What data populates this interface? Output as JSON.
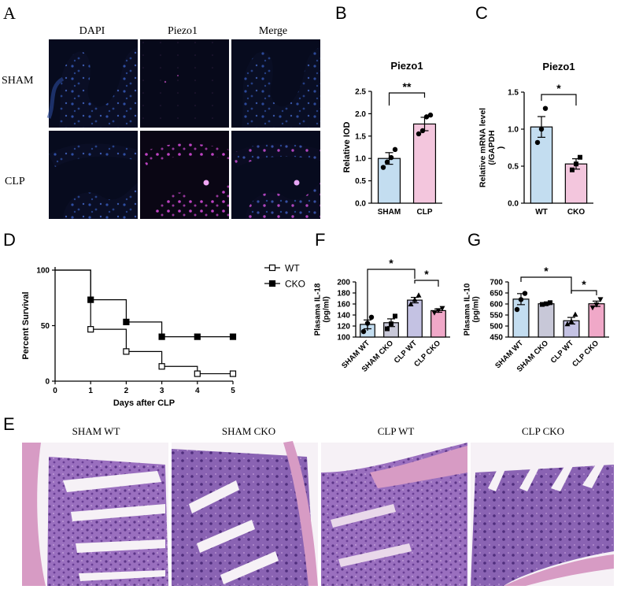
{
  "panels": {
    "A": {
      "letter": "A",
      "columns": [
        "DAPI",
        "Piezo1",
        "Merge"
      ],
      "rows": [
        "SHAM",
        "CLP"
      ]
    },
    "B": {
      "letter": "B"
    },
    "C": {
      "letter": "C"
    },
    "D": {
      "letter": "D"
    },
    "E": {
      "letter": "E",
      "captions": [
        "SHAM WT",
        "SHAM CKO",
        "CLP WT",
        "CLP CKO"
      ]
    },
    "F": {
      "letter": "F"
    },
    "G": {
      "letter": "G"
    }
  },
  "colors": {
    "sham_bar": "#c3ddf0",
    "clp_bar": "#f3c6dd",
    "clp_wt_bar": "#c4c2e3",
    "cko_bar": "#f0a8c8",
    "sham_cko_bar": "#c8c8d8",
    "dapi_blue": "#2b4a9a",
    "piezo_magenta": "#d24ad6",
    "he_purple": "#7d4fa8",
    "he_pink": "#d79bc4"
  },
  "chart_data": [
    {
      "id": "B",
      "type": "bar",
      "title": "Piezo1",
      "ylabel": "Relative IOD",
      "categories": [
        "SHAM",
        "CLP"
      ],
      "values": [
        1.0,
        1.77
      ],
      "errors": [
        0.13,
        0.15
      ],
      "points": [
        [
          0.8,
          0.92,
          1.02,
          1.2
        ],
        [
          1.55,
          1.62,
          1.93,
          1.97
        ]
      ],
      "ylim": [
        0,
        2.5
      ],
      "yticks": [
        "0.0",
        "0.5",
        "1.0",
        "1.5",
        "2.0",
        "2.5"
      ],
      "significance": "**"
    },
    {
      "id": "C",
      "type": "bar",
      "title": "Piezo1",
      "ylabel": "Relative mRNA level\n(/GAPDH\n)",
      "categories": [
        "WT",
        "CKO"
      ],
      "values": [
        1.03,
        0.53
      ],
      "errors": [
        0.14,
        0.07
      ],
      "points": [
        [
          0.82,
          1.0,
          1.28
        ],
        [
          0.45,
          0.53,
          0.62
        ]
      ],
      "ylim": [
        0,
        1.5
      ],
      "yticks": [
        "0.0",
        "0.5",
        "1.0",
        "1.5"
      ],
      "significance": "*"
    },
    {
      "id": "D",
      "type": "line",
      "ylabel": "Percent Survival",
      "xlabel": "Days after CLP",
      "xlim": [
        0,
        5
      ],
      "ylim": [
        0,
        100
      ],
      "xticks": [
        "0",
        "1",
        "2",
        "3",
        "4",
        "5"
      ],
      "yticks": [
        "0",
        "50",
        "100"
      ],
      "legend": "top-right",
      "series": [
        {
          "name": "WT",
          "x": [
            0,
            1,
            2,
            3,
            4,
            5
          ],
          "y": [
            100,
            46.7,
            26.7,
            13.3,
            6.7,
            6.7
          ]
        },
        {
          "name": "CKO",
          "x": [
            0,
            1,
            2,
            3,
            4,
            5
          ],
          "y": [
            100,
            73.3,
            53.3,
            40,
            40,
            40
          ]
        }
      ]
    },
    {
      "id": "F",
      "type": "bar",
      "ylabel": "Plasama IL-18\n(pg/ml)",
      "categories": [
        "SHAM WT",
        "SHAM CKO",
        "CLP WT",
        "CLP CKO"
      ],
      "values": [
        123,
        126,
        167,
        148
      ],
      "errors": [
        8,
        7,
        5,
        3
      ],
      "points": [
        [
          110,
          125,
          136
        ],
        [
          115,
          124,
          138
        ],
        [
          160,
          168,
          176
        ],
        [
          144,
          148,
          152
        ]
      ],
      "ylim": [
        100,
        200
      ],
      "yticks": [
        "100",
        "120",
        "140",
        "160",
        "180",
        "200"
      ],
      "significance": [
        "*",
        "*"
      ]
    },
    {
      "id": "G",
      "type": "bar",
      "ylabel": "Plasama IL-10\n(pg/ml)",
      "categories": [
        "SHAM WT",
        "SHAM CKO",
        "CLP WT",
        "CLP CKO"
      ],
      "values": [
        622,
        601,
        524,
        601
      ],
      "errors": [
        25,
        5,
        15,
        12
      ],
      "points": [
        [
          575,
          620,
          648
        ],
        [
          598,
          601,
          606
        ],
        [
          510,
          522,
          553
        ],
        [
          583,
          596,
          620
        ]
      ],
      "ylim": [
        450,
        700
      ],
      "yticks": [
        "450",
        "500",
        "550",
        "600",
        "650",
        "700"
      ],
      "significance": [
        "*",
        "*"
      ]
    }
  ]
}
